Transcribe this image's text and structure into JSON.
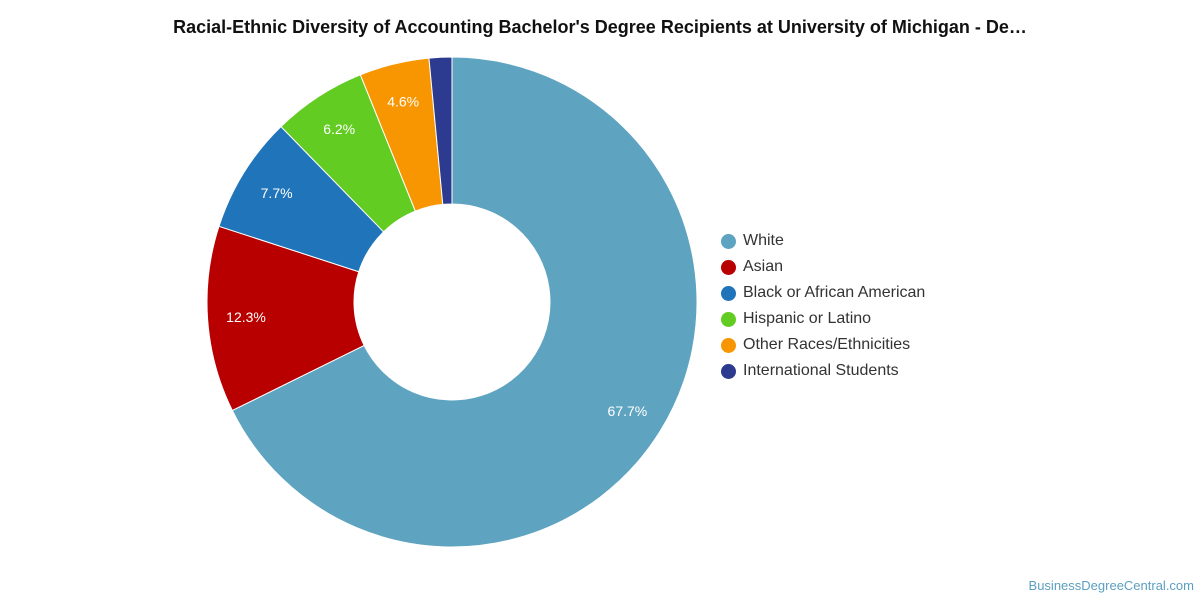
{
  "chart_data": {
    "type": "pie",
    "variant": "donut",
    "title": "Racial-Ethnic Diversity of Accounting Bachelor's Degree Recipients at University of Michigan - De…",
    "legend_position": "right",
    "slices": [
      {
        "name": "White",
        "value": 67.7,
        "label": "67.7%",
        "color": "#5ea3c0"
      },
      {
        "name": "Asian",
        "value": 12.3,
        "label": "12.3%",
        "color": "#b80000"
      },
      {
        "name": "Black or African American",
        "value": 7.7,
        "label": "7.7%",
        "color": "#1f74ba"
      },
      {
        "name": "Hispanic or Latino",
        "value": 6.2,
        "label": "6.2%",
        "color": "#62cc22"
      },
      {
        "name": "Other Races/Ethnicities",
        "value": 4.6,
        "label": "4.6%",
        "color": "#f79600"
      },
      {
        "name": "International Students",
        "value": 1.5,
        "label": "",
        "color": "#2c3b8f"
      }
    ]
  },
  "credit": "BusinessDegreeCentral.com"
}
